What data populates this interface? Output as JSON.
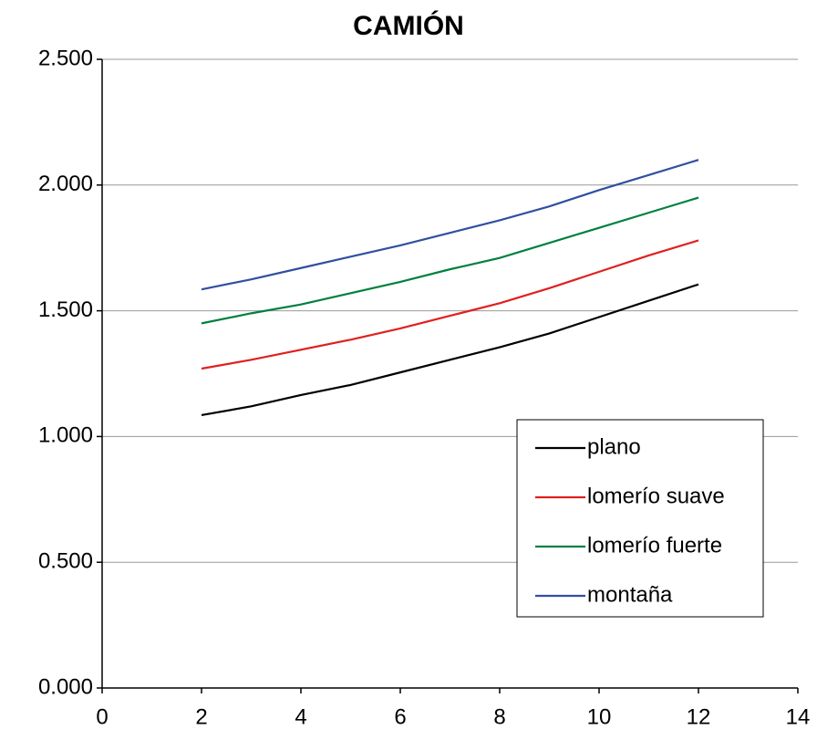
{
  "chart_data": {
    "type": "line",
    "title": "CAMIÓN",
    "x": [
      2,
      3,
      4,
      5,
      6,
      7,
      8,
      9,
      10,
      11,
      12
    ],
    "series": [
      {
        "name": "plano",
        "color": "#000000",
        "values": [
          1.085,
          1.12,
          1.165,
          1.205,
          1.255,
          1.305,
          1.355,
          1.41,
          1.475,
          1.54,
          1.605
        ]
      },
      {
        "name": "lomerío suave",
        "color": "#e02020",
        "values": [
          1.27,
          1.305,
          1.345,
          1.385,
          1.43,
          1.48,
          1.53,
          1.59,
          1.655,
          1.72,
          1.78
        ]
      },
      {
        "name": "lomerío fuerte",
        "color": "#008040",
        "values": [
          1.45,
          1.49,
          1.525,
          1.57,
          1.615,
          1.665,
          1.71,
          1.77,
          1.83,
          1.89,
          1.95
        ]
      },
      {
        "name": "montaña",
        "color": "#3050a0",
        "values": [
          1.585,
          1.625,
          1.67,
          1.715,
          1.76,
          1.81,
          1.86,
          1.915,
          1.98,
          2.04,
          2.1
        ]
      }
    ],
    "xlim": [
      0,
      14
    ],
    "xticks": [
      0,
      2,
      4,
      6,
      8,
      10,
      12,
      14
    ],
    "ylim": [
      0,
      2.5
    ],
    "yticks": [
      {
        "value": 0,
        "label": "0.000"
      },
      {
        "value": 0.5,
        "label": "0.500"
      },
      {
        "value": 1,
        "label": "1.000"
      },
      {
        "value": 1.5,
        "label": "1.500"
      },
      {
        "value": 2,
        "label": "2.000"
      },
      {
        "value": 2.5,
        "label": "2.500"
      }
    ],
    "grid": true,
    "legend": "lower right"
  }
}
